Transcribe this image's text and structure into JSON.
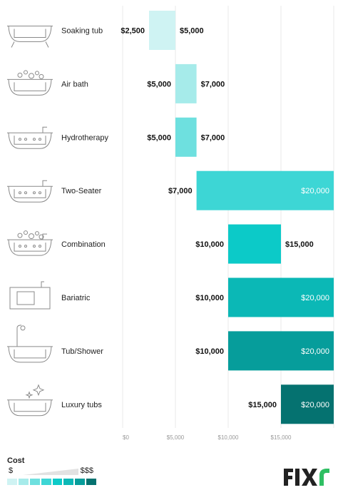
{
  "chart_data": {
    "type": "bar",
    "subtype": "floating-range-horizontal",
    "categories": [
      "Soaking tub",
      "Air bath",
      "Hydrotherapy",
      "Two-Seater",
      "Combination",
      "Bariatric",
      "Tub/Shower",
      "Luxury tubs"
    ],
    "series": [
      {
        "values": [
          [
            2500,
            5000
          ],
          [
            5000,
            7000
          ],
          [
            5000,
            7000
          ],
          [
            7000,
            20000
          ],
          [
            10000,
            15000
          ],
          [
            10000,
            20000
          ],
          [
            10000,
            20000
          ],
          [
            15000,
            20000
          ]
        ]
      }
    ],
    "min_labels": [
      "$2,500",
      "$5,000",
      "$5,000",
      "$7,000",
      "$10,000",
      "$10,000",
      "$10,000",
      "$15,000"
    ],
    "max_labels": [
      "$5,000",
      "$7,000",
      "$7,000",
      "$20,000",
      "$15,000",
      "$20,000",
      "$20,000",
      "$20,000"
    ],
    "bar_colors": [
      "#cff3f3",
      "#a6ebea",
      "#6ee0df",
      "#3dd6d5",
      "#0ccac8",
      "#0bb8b6",
      "#069d9b",
      "#057270"
    ],
    "x_ticks": [
      {
        "value": 0,
        "label": "$0"
      },
      {
        "value": 5000,
        "label": "$5,000"
      },
      {
        "value": 10000,
        "label": "$10,000"
      },
      {
        "value": 15000,
        "label": "$15,000"
      }
    ],
    "xlim": [
      0,
      20000
    ],
    "grid": true,
    "icons": [
      "soaking-tub-icon",
      "air-bath-icon",
      "hydrotherapy-icon",
      "two-seater-icon",
      "combination-icon",
      "bariatric-icon",
      "tub-shower-icon",
      "luxury-tub-icon"
    ]
  },
  "legend": {
    "title": "Cost",
    "min": "$",
    "max": "$$$",
    "colors": [
      "#cff3f3",
      "#a6ebea",
      "#6ee0df",
      "#3dd6d5",
      "#0ccac8",
      "#0bb8b6",
      "#069d9b",
      "#057270"
    ]
  },
  "brand": {
    "logo_text": "FIXR"
  }
}
